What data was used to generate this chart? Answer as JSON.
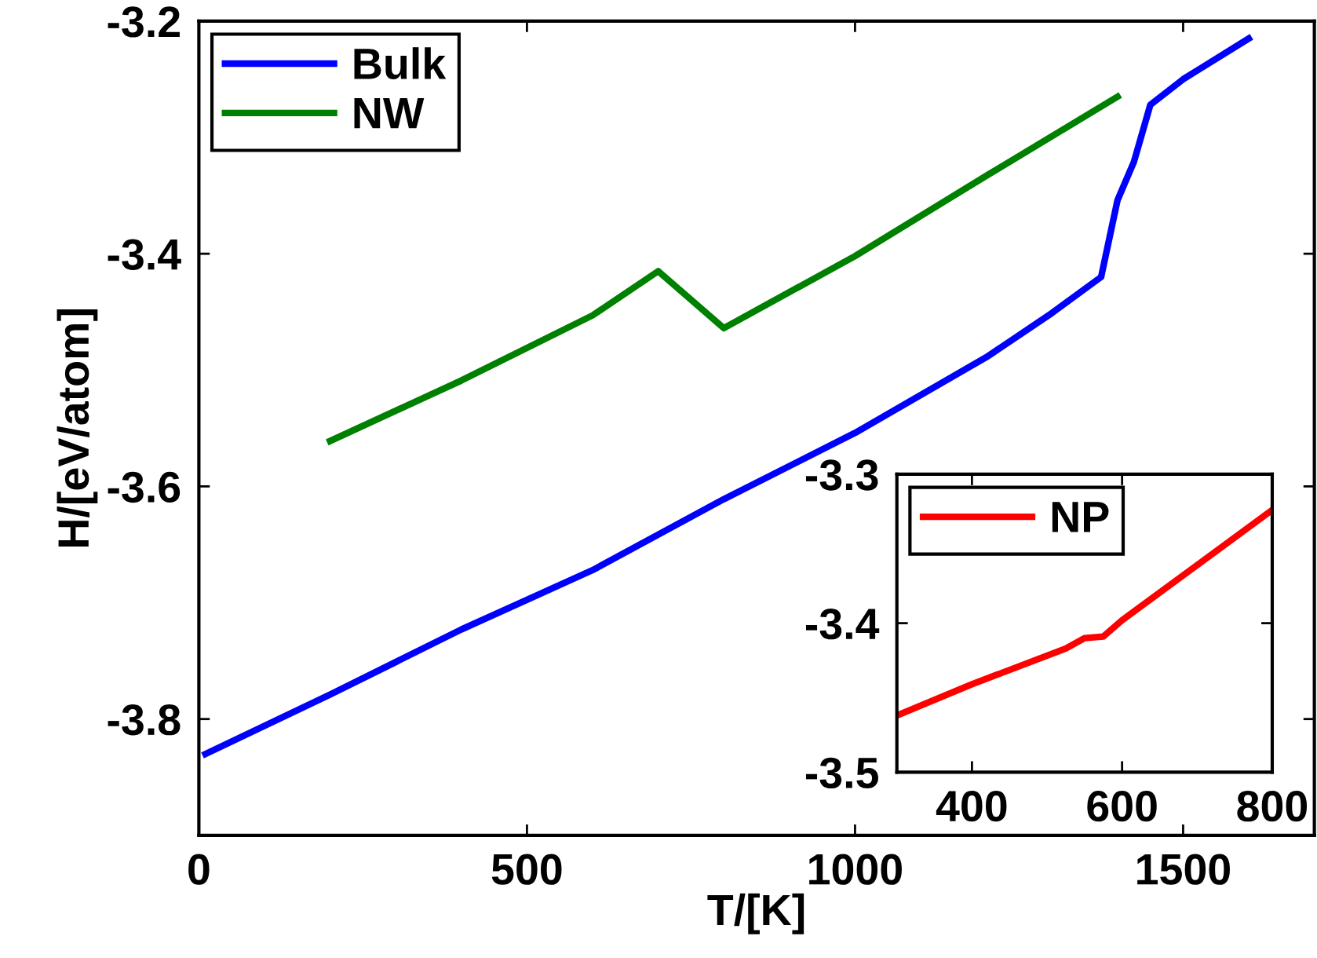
{
  "chart_data": [
    {
      "type": "line",
      "xlabel": "T/[K]",
      "ylabel": "H/[eV/atom]",
      "xlim": [
        0,
        1700
      ],
      "ylim": [
        -3.9,
        -3.2
      ],
      "xticks": [
        0,
        500,
        1000,
        1500
      ],
      "yticks": [
        -3.8,
        -3.6,
        -3.4,
        -3.2
      ],
      "grid": false,
      "legend": "top left",
      "marker": "none",
      "line_style": "solid",
      "series": [
        {
          "name": "Bulk",
          "color": "#0000ff",
          "x": [
            10,
            200,
            400,
            600,
            800,
            1000,
            1200,
            1300,
            1375,
            1400,
            1425,
            1450,
            1500,
            1600
          ],
          "values": [
            -3.83,
            -3.779,
            -3.723,
            -3.672,
            -3.611,
            -3.554,
            -3.489,
            -3.451,
            -3.42,
            -3.354,
            -3.321,
            -3.272,
            -3.25,
            -3.215
          ]
        },
        {
          "name": "NW",
          "color": "#008000",
          "x": [
            200,
            400,
            600,
            700,
            800,
            1000,
            1200,
            1400
          ],
          "values": [
            -3.561,
            -3.509,
            -3.453,
            -3.415,
            -3.464,
            -3.402,
            -3.333,
            -3.265
          ]
        }
      ]
    },
    {
      "type": "line",
      "xlim": [
        300,
        800
      ],
      "ylim": [
        -3.5,
        -3.3
      ],
      "xticks": [
        400,
        600,
        800
      ],
      "yticks": [
        -3.5,
        -3.4,
        -3.3
      ],
      "grid": false,
      "legend": "top left",
      "marker": "none",
      "line_style": "solid",
      "series": [
        {
          "name": "NP",
          "color": "#ff0000",
          "x": [
            300,
            400,
            525,
            550,
            575,
            600,
            800
          ],
          "values": [
            -3.462,
            -3.441,
            -3.417,
            -3.41,
            -3.409,
            -3.398,
            -3.324
          ]
        }
      ]
    }
  ]
}
